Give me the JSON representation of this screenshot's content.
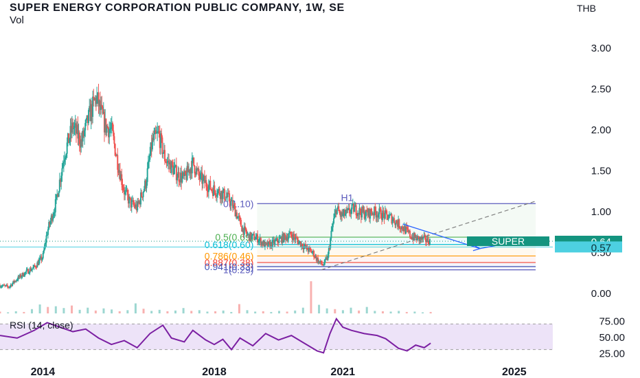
{
  "header": {
    "title": "SUPER ENERGY CORPORATION PUBLIC COMPANY, 1W, SE",
    "volume_label": "Vol",
    "currency": "THB"
  },
  "colors": {
    "candle_up": "#26a69a",
    "candle_down": "#ef5350",
    "fib_0": "#5b5bbd",
    "fib_05": "#4caf50",
    "fib_0618": "#00bcd4",
    "fib_0786": "#ff9800",
    "fib_0887": "#f44336",
    "fib_0941": "#3f51b5",
    "fib_1": "#5b5bbd",
    "arrow": "#2962ff",
    "rsi_line": "#7b1fa2",
    "rsi_band": "#e7daf5",
    "super_tag": "#14947f",
    "price_057_tag": "#4dd0e1"
  },
  "chart_data": {
    "type": "candlestick",
    "symbol": "SUPER",
    "timeframe": "1W",
    "x_axis": {
      "ticks": [
        "2014",
        "2018",
        "2021",
        "2025"
      ],
      "tick_values": [
        2014.0,
        2018.0,
        2021.0,
        2025.0
      ],
      "range": [
        2013.0,
        2025.9
      ]
    },
    "y_axis": {
      "ticks": [
        "0.00",
        "0.50",
        "1.00",
        "1.50",
        "2.00",
        "2.50",
        "3.00"
      ],
      "range": [
        -0.15,
        3.38
      ],
      "unit": "THB"
    },
    "price_path": [
      [
        2013.0,
        0.1
      ],
      [
        2013.2,
        0.08
      ],
      [
        2013.4,
        0.18
      ],
      [
        2013.6,
        0.26
      ],
      [
        2013.8,
        0.32
      ],
      [
        2014.0,
        0.45
      ],
      [
        2014.1,
        0.75
      ],
      [
        2014.3,
        1.1
      ],
      [
        2014.5,
        1.7
      ],
      [
        2014.7,
        2.05
      ],
      [
        2014.9,
        1.85
      ],
      [
        2015.1,
        2.2
      ],
      [
        2015.25,
        2.4
      ],
      [
        2015.45,
        2.05
      ],
      [
        2015.6,
        2.0
      ],
      [
        2015.75,
        1.6
      ],
      [
        2015.9,
        1.25
      ],
      [
        2016.05,
        1.1
      ],
      [
        2016.2,
        1.05
      ],
      [
        2016.4,
        1.35
      ],
      [
        2016.55,
        1.85
      ],
      [
        2016.7,
        1.95
      ],
      [
        2016.85,
        1.65
      ],
      [
        2017.0,
        1.55
      ],
      [
        2017.15,
        1.45
      ],
      [
        2017.3,
        1.4
      ],
      [
        2017.5,
        1.6
      ],
      [
        2017.65,
        1.42
      ],
      [
        2017.8,
        1.35
      ],
      [
        2017.95,
        1.28
      ],
      [
        2018.1,
        1.25
      ],
      [
        2018.25,
        1.2
      ],
      [
        2018.35,
        1.15
      ],
      [
        2018.5,
        1.0
      ],
      [
        2018.65,
        0.8
      ],
      [
        2018.8,
        0.7
      ],
      [
        2019.0,
        0.68
      ],
      [
        2019.2,
        0.58
      ],
      [
        2019.4,
        0.62
      ],
      [
        2019.6,
        0.68
      ],
      [
        2019.8,
        0.72
      ],
      [
        2020.0,
        0.62
      ],
      [
        2020.15,
        0.55
      ],
      [
        2020.3,
        0.5
      ],
      [
        2020.45,
        0.38
      ],
      [
        2020.55,
        0.35
      ],
      [
        2020.65,
        0.45
      ],
      [
        2020.75,
        0.8
      ],
      [
        2020.85,
        1.05
      ],
      [
        2020.95,
        0.95
      ],
      [
        2021.1,
        0.98
      ],
      [
        2021.25,
        1.04
      ],
      [
        2021.4,
        1.0
      ],
      [
        2021.55,
        0.97
      ],
      [
        2021.7,
        1.0
      ],
      [
        2021.85,
        0.98
      ],
      [
        2022.0,
        0.95
      ],
      [
        2022.15,
        0.92
      ],
      [
        2022.3,
        0.85
      ],
      [
        2022.45,
        0.78
      ],
      [
        2022.6,
        0.7
      ],
      [
        2022.75,
        0.67
      ],
      [
        2022.9,
        0.66
      ],
      [
        2023.05,
        0.64
      ]
    ],
    "last_price": {
      "label": "SUPER",
      "value": "0.64",
      "y": 0.64
    },
    "fib_retracement": {
      "x_start": 2019.0,
      "x_end": 2025.5,
      "levels": [
        {
          "ratio": 0,
          "label": "0(1.10)",
          "y": 1.1,
          "color_key": "fib_0"
        },
        {
          "ratio": 0.5,
          "label": "0.5(0.69)",
          "y": 0.69,
          "color_key": "fib_05"
        },
        {
          "ratio": 0.618,
          "label": "0.618(0.60)",
          "y": 0.6,
          "color_key": "fib_0618"
        },
        {
          "ratio": 0.786,
          "label": "0.786(0.46)",
          "y": 0.46,
          "color_key": "fib_0786"
        },
        {
          "ratio": 0.887,
          "label": "0.887(0.38)",
          "y": 0.38,
          "color_key": "fib_0887"
        },
        {
          "ratio": 0.941,
          "label": "0.941(0.33)",
          "y": 0.33,
          "color_key": "fib_0941"
        },
        {
          "ratio": 1,
          "label": "1(0.29)",
          "y": 0.29,
          "color_key": "fib_1"
        }
      ]
    },
    "support_line": {
      "y": 0.57,
      "label": "0.57"
    },
    "annotations": [
      {
        "text": "H1",
        "x": 2021.1,
        "y": 1.13
      }
    ],
    "trend_line": {
      "from": [
        2020.5,
        0.29
      ],
      "to": [
        2025.5,
        1.13
      ]
    },
    "projection_arrow": {
      "from": [
        2022.4,
        0.85
      ],
      "via": [
        2024.2,
        0.55
      ],
      "to": [
        2024.6,
        0.59
      ]
    },
    "volume": {
      "values": [
        0.5,
        0.3,
        0.6,
        0.4,
        1.2,
        2.5,
        1.8,
        2.0,
        1.5,
        2.2,
        1.0,
        1.6,
        0.8,
        1.4,
        1.1,
        0.6,
        0.9,
        2.8,
        1.3,
        0.7,
        1.0,
        0.6,
        0.8,
        1.5,
        0.7,
        0.9,
        0.5,
        0.6,
        0.8,
        0.4,
        2.6,
        0.9,
        0.5,
        0.6,
        0.4,
        0.7,
        0.5,
        0.8,
        1.6,
        9.0,
        2.4,
        1.4,
        1.2,
        0.9,
        1.6,
        0.8,
        1.8,
        0.7,
        0.6,
        0.5,
        0.7,
        0.4,
        0.5,
        0.3,
        0.4
      ],
      "range_years": [
        2013.0,
        2023.05
      ]
    },
    "rsi": {
      "label": "RSI (14, close)",
      "ticks": [
        "75.00",
        "50.00",
        "25.00"
      ],
      "tick_values": [
        75,
        50,
        25
      ],
      "range": [
        20,
        80
      ],
      "band": [
        30,
        70
      ],
      "path": [
        [
          2013.0,
          52
        ],
        [
          2013.4,
          48
        ],
        [
          2013.8,
          60
        ],
        [
          2014.1,
          72
        ],
        [
          2014.4,
          65
        ],
        [
          2014.7,
          58
        ],
        [
          2015.0,
          62
        ],
        [
          2015.3,
          48
        ],
        [
          2015.6,
          38
        ],
        [
          2015.9,
          44
        ],
        [
          2016.2,
          33
        ],
        [
          2016.5,
          55
        ],
        [
          2016.8,
          68
        ],
        [
          2017.0,
          48
        ],
        [
          2017.3,
          42
        ],
        [
          2017.5,
          60
        ],
        [
          2017.8,
          45
        ],
        [
          2018.0,
          38
        ],
        [
          2018.2,
          46
        ],
        [
          2018.4,
          30
        ],
        [
          2018.6,
          48
        ],
        [
          2018.9,
          36
        ],
        [
          2019.2,
          55
        ],
        [
          2019.5,
          45
        ],
        [
          2019.8,
          52
        ],
        [
          2020.1,
          40
        ],
        [
          2020.4,
          28
        ],
        [
          2020.55,
          25
        ],
        [
          2020.7,
          55
        ],
        [
          2020.85,
          78
        ],
        [
          2021.0,
          65
        ],
        [
          2021.2,
          60
        ],
        [
          2021.5,
          55
        ],
        [
          2021.8,
          52
        ],
        [
          2022.0,
          47
        ],
        [
          2022.3,
          32
        ],
        [
          2022.5,
          28
        ],
        [
          2022.7,
          37
        ],
        [
          2022.9,
          33
        ],
        [
          2023.05,
          40
        ]
      ]
    }
  }
}
